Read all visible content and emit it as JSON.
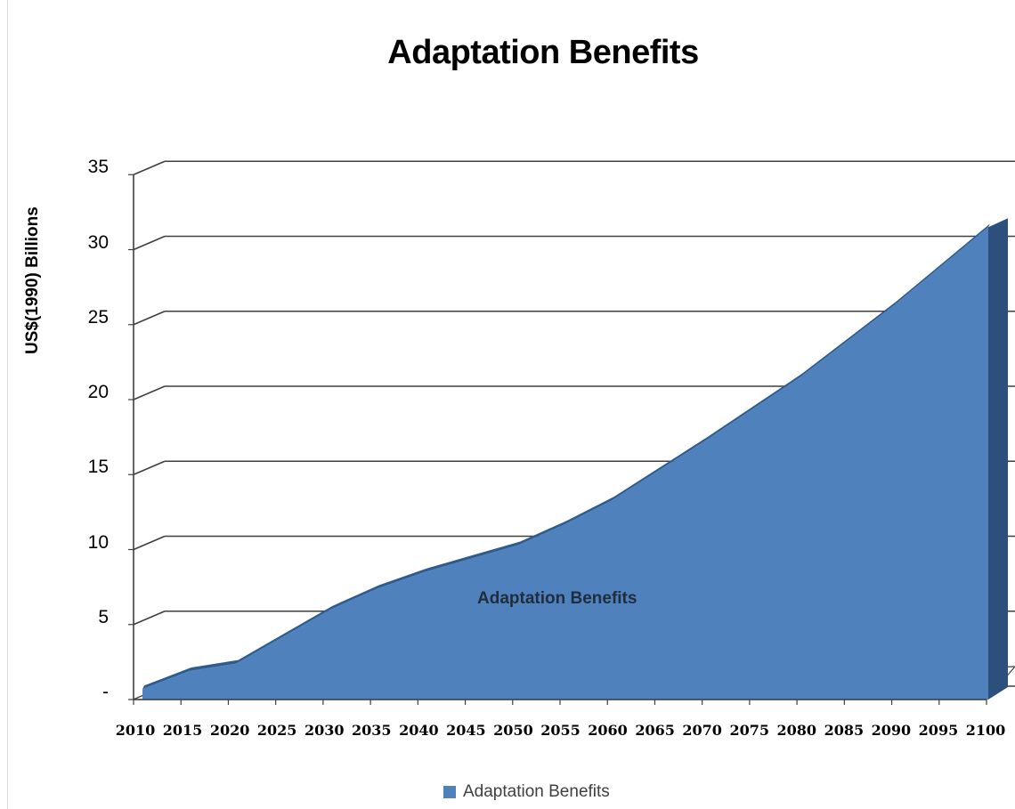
{
  "chart_data": {
    "type": "area",
    "title": "Adaptation Benefits",
    "ylabel": "US$(1990) Billions",
    "xlabel": "",
    "x": [
      "2010",
      "2015",
      "2020",
      "2025",
      "2030",
      "2035",
      "2040",
      "2045",
      "2050",
      "2055",
      "2060",
      "2065",
      "2070",
      "2075",
      "2080",
      "2085",
      "2090",
      "2095",
      "2100"
    ],
    "y_tick_labels": [
      "-",
      "5",
      "10",
      "15",
      "20",
      "25",
      "30",
      "35"
    ],
    "ylim": [
      0,
      35
    ],
    "grid": true,
    "three_d": true,
    "series": [
      {
        "name": "Adaptation Benefits",
        "color": "#4f81bd",
        "values": [
          0.4,
          1.6,
          2.1,
          3.9,
          5.7,
          7.1,
          8.2,
          9.1,
          10.0,
          11.4,
          13.0,
          15.0,
          17.0,
          19.1,
          21.2,
          23.6,
          26.0,
          28.6,
          31.2
        ]
      }
    ],
    "data_label": "Adaptation Benefits",
    "legend": {
      "position": "bottom",
      "label": "Adaptation Benefits"
    }
  }
}
